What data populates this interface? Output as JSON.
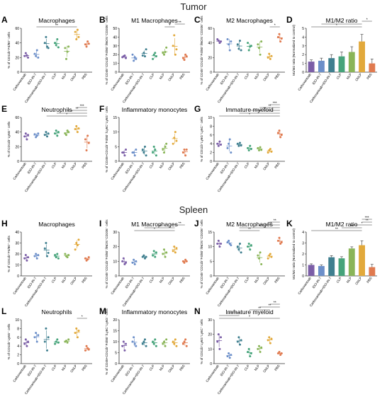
{
  "sections": {
    "tumor": "Tumor",
    "spleen": "Spleen"
  },
  "categories": [
    "Carboxantoab",
    "IDO-IN-7",
    "Carboxantoab+IDO-IN-7",
    "CLP",
    "NLP",
    "CNLP",
    "PBS"
  ],
  "group_colors": [
    "#7b5ea7",
    "#6c8fc9",
    "#3f7f8f",
    "#45a37a",
    "#8ab558",
    "#e2a93b",
    "#e07a4f"
  ],
  "chart_data": [
    {
      "panel": "A",
      "title": "Macrophages",
      "type": "scatter",
      "ylabel": "% of CD11b⁺F4/80⁺ cells",
      "ylim": [
        0,
        60
      ],
      "yticks": [
        0,
        20,
        40,
        60
      ],
      "series": [
        [
          22,
          26,
          23,
          20
        ],
        [
          25,
          22,
          30,
          20
        ],
        [
          40,
          48,
          35,
          33
        ],
        [
          40,
          37,
          45,
          34
        ],
        [
          33,
          18,
          28,
          35
        ],
        [
          55,
          45,
          58,
          48
        ],
        [
          38,
          35,
          42,
          39
        ]
      ],
      "annotations": [
        {
          "from": 1,
          "to": 5,
          "text": "**"
        }
      ]
    },
    {
      "panel": "B",
      "title": "M1 Macrophages",
      "type": "scatter",
      "ylabel": "% of CD45⁺CD11b⁺F4/80⁺/iNOS⁺CD206⁻ cells",
      "ylim": [
        0,
        50
      ],
      "yticks": [
        0,
        10,
        20,
        30,
        40,
        50
      ],
      "series": [
        [
          17,
          18,
          19,
          16
        ],
        [
          20,
          13,
          17,
          15
        ],
        [
          19,
          22,
          18,
          26
        ],
        [
          15,
          20,
          22,
          18
        ],
        [
          22,
          20,
          23,
          28
        ],
        [
          30,
          42,
          20,
          26
        ],
        [
          16,
          14,
          20,
          18
        ]
      ],
      "annotations": [
        {
          "from": 4,
          "to": 5,
          "text": "*"
        },
        {
          "from": 5,
          "to": 6,
          "text": "**"
        }
      ]
    },
    {
      "panel": "C",
      "title": "M2 Macrophages",
      "type": "scatter",
      "ylabel": "% of CD45⁺CD11b⁺F4/80⁺/iNOS⁻CD206⁺ cells",
      "ylim": [
        0,
        60
      ],
      "yticks": [
        0,
        20,
        40,
        60
      ],
      "series": [
        [
          45,
          43,
          40,
          42
        ],
        [
          45,
          38,
          30,
          42
        ],
        [
          38,
          32,
          43,
          30
        ],
        [
          40,
          30,
          35,
          36
        ],
        [
          38,
          33,
          24,
          42
        ],
        [
          20,
          25,
          18,
          22
        ],
        [
          48,
          52,
          42,
          46
        ]
      ],
      "annotations": [
        {
          "from": 5,
          "to": 6,
          "text": "*"
        }
      ]
    },
    {
      "panel": "D",
      "title": "M1/M2 ratio",
      "type": "bar",
      "ylabel": "M1/M2 ratio (Normalized to control)",
      "ylim": [
        0,
        5
      ],
      "yticks": [
        0,
        1,
        2,
        3,
        4,
        5
      ],
      "values": [
        1.2,
        1.3,
        1.6,
        1.8,
        2.3,
        3.5,
        1.0
      ],
      "errors": [
        0.2,
        0.3,
        0.4,
        0.5,
        0.6,
        0.8,
        0.5
      ],
      "annotations": [
        {
          "from": 0,
          "to": 5,
          "text": "*"
        },
        {
          "from": 1,
          "to": 5,
          "text": "*"
        },
        {
          "from": 5,
          "to": 6,
          "text": "*"
        }
      ]
    },
    {
      "panel": "E",
      "title": "Neutrophils",
      "type": "scatter",
      "ylabel": "% of CD11b⁺Ly6G⁺ cells",
      "ylim": [
        0,
        60
      ],
      "yticks": [
        0,
        20,
        40,
        60
      ],
      "series": [
        [
          34,
          38,
          30,
          36
        ],
        [
          37,
          33,
          35,
          38
        ],
        [
          36,
          40,
          34,
          38
        ],
        [
          38,
          42,
          35,
          40
        ],
        [
          38,
          36,
          42,
          40
        ],
        [
          44,
          48,
          40,
          45
        ],
        [
          30,
          15,
          35,
          25
        ]
      ],
      "annotations": [
        {
          "from": 2,
          "to": 6,
          "text": "*"
        },
        {
          "from": 3,
          "to": 6,
          "text": "*"
        },
        {
          "from": 4,
          "to": 6,
          "text": "**"
        },
        {
          "from": 5,
          "to": 6,
          "text": "***"
        }
      ]
    },
    {
      "panel": "F",
      "title": "Inflammatory monocytes",
      "type": "scatter",
      "ylabel": "% of CD45+CD11b⁺F4/80⁻/Ly6C⁺Ly6G⁻ cells",
      "ylim": [
        0,
        15
      ],
      "yticks": [
        0,
        5,
        10,
        15
      ],
      "series": [
        [
          3,
          3,
          2,
          4
        ],
        [
          3,
          3,
          2,
          4
        ],
        [
          4,
          3,
          5,
          2
        ],
        [
          3,
          5,
          4,
          2
        ],
        [
          4,
          3,
          5,
          6
        ],
        [
          6,
          8,
          10,
          7
        ],
        [
          3,
          4,
          2,
          4
        ]
      ],
      "annotations": []
    },
    {
      "panel": "G",
      "title": "Immature myeloid",
      "type": "scatter",
      "ylabel": "% of CD11b⁺Ly6G⁺Ly6C⁺ cells",
      "ylim": [
        0,
        10
      ],
      "yticks": [
        0,
        2,
        4,
        6,
        8,
        10
      ],
      "series": [
        [
          4,
          3.5,
          4.5,
          3.8
        ],
        [
          3,
          4,
          5,
          2
        ],
        [
          4,
          3.5,
          4.2,
          3.6
        ],
        [
          3,
          2.5,
          3.5,
          2.8
        ],
        [
          3,
          2.5,
          3.2,
          2.6
        ],
        [
          2,
          2.5,
          2.8,
          2.2
        ],
        [
          6.5,
          7,
          5.5,
          6
        ]
      ],
      "annotations": [
        {
          "from": 0,
          "to": 6,
          "text": "*"
        },
        {
          "from": 2,
          "to": 6,
          "text": "**"
        },
        {
          "from": 3,
          "to": 6,
          "text": "**"
        },
        {
          "from": 4,
          "to": 6,
          "text": "**"
        },
        {
          "from": 5,
          "to": 6,
          "text": "***"
        }
      ]
    },
    {
      "panel": "H",
      "title": "Macrophages",
      "type": "scatter",
      "ylabel": "% of CD11b⁺F4/80⁺ cells",
      "ylim": [
        0,
        40
      ],
      "yticks": [
        0,
        10,
        20,
        30,
        40
      ],
      "series": [
        [
          16,
          19,
          14,
          17
        ],
        [
          18,
          20,
          16,
          19
        ],
        [
          25,
          30,
          18,
          21
        ],
        [
          19,
          17,
          20,
          16
        ],
        [
          20,
          18,
          17,
          19
        ],
        [
          24,
          30,
          28,
          33
        ],
        [
          16,
          14,
          15,
          17
        ]
      ],
      "annotations": []
    },
    {
      "panel": "I",
      "title": "M1 Macrophages",
      "type": "scatter",
      "ylabel": "% of CD45⁺CD11b⁺F4/80⁺/iNOS⁺CD206⁻ cells",
      "ylim": [
        0,
        30
      ],
      "yticks": [
        0,
        10,
        20,
        30
      ],
      "series": [
        [
          10,
          12,
          8,
          9
        ],
        [
          9,
          11,
          8,
          10
        ],
        [
          13,
          14,
          12,
          13
        ],
        [
          14,
          17,
          13,
          16
        ],
        [
          15,
          18,
          13,
          16
        ],
        [
          17,
          20,
          16,
          19
        ],
        [
          10,
          9,
          11,
          10
        ]
      ],
      "annotations": [
        {
          "from": 1,
          "to": 5,
          "text": "*"
        },
        {
          "from": 2,
          "to": 5,
          "text": "**"
        },
        {
          "from": 5,
          "to": 6,
          "text": "**"
        }
      ]
    },
    {
      "panel": "J",
      "title": "M2 Macrophages",
      "type": "scatter",
      "ylabel": "% of CD45⁺CD11b⁺F4/80⁺/iNOS⁻CD206⁺ cells",
      "ylim": [
        0,
        15
      ],
      "yticks": [
        0,
        5,
        10,
        15
      ],
      "series": [
        [
          11,
          12,
          10,
          11
        ],
        [
          11.5,
          12,
          11,
          10.5
        ],
        [
          10,
          9,
          11,
          8
        ],
        [
          10,
          11,
          9,
          10.5
        ],
        [
          7,
          6,
          8,
          4
        ],
        [
          6,
          7,
          7.5,
          6.5
        ],
        [
          12,
          13,
          11,
          11.5
        ]
      ],
      "annotations": [
        {
          "from": 2,
          "to": 4,
          "text": "**"
        },
        {
          "from": 2,
          "to": 6,
          "text": "*"
        },
        {
          "from": 4,
          "to": 6,
          "text": "***"
        },
        {
          "from": 5,
          "to": 6,
          "text": "**"
        }
      ]
    },
    {
      "panel": "K",
      "title": "M1/M2 ratio",
      "type": "bar",
      "ylabel": "M1/M2 ratio (Normalized to control)",
      "ylim": [
        0,
        4
      ],
      "yticks": [
        0,
        1,
        2,
        3,
        4
      ],
      "values": [
        1.0,
        0.9,
        1.7,
        1.6,
        2.5,
        2.8,
        0.8
      ],
      "errors": [
        0.1,
        0.1,
        0.15,
        0.15,
        0.15,
        0.4,
        0.25
      ],
      "annotations": [
        {
          "from": 0,
          "to": 5,
          "text": "**"
        },
        {
          "from": 3,
          "to": 5,
          "text": "**"
        },
        {
          "from": 4,
          "to": 6,
          "text": "*"
        },
        {
          "from": 5,
          "to": 6,
          "text": "**"
        },
        {
          "from": 5,
          "to": 6,
          "text": "***"
        }
      ]
    },
    {
      "panel": "L",
      "title": "Neutrophils",
      "type": "scatter",
      "ylabel": "% of CD11b⁺Ly6G⁺ cells",
      "ylim": [
        0,
        10
      ],
      "yticks": [
        0,
        2,
        4,
        6,
        8,
        10
      ],
      "series": [
        [
          4.5,
          5.5,
          4,
          5
        ],
        [
          6,
          7,
          5,
          6.5
        ],
        [
          5,
          8,
          3,
          6
        ],
        [
          4.5,
          5,
          5.5,
          4.8
        ],
        [
          5,
          5.2,
          4.8,
          5.5
        ],
        [
          7,
          8,
          6,
          7.5
        ],
        [
          3,
          4,
          3.5,
          3.2
        ]
      ],
      "annotations": [
        {
          "from": 5,
          "to": 6,
          "text": "*"
        }
      ]
    },
    {
      "panel": "M",
      "title": "Inflammatory monocytes",
      "type": "scatter",
      "ylabel": "% of CD45+CD11b⁺F4/80⁻/Ly6C⁺Ly6G⁻ cells",
      "ylim": [
        0,
        20
      ],
      "yticks": [
        0,
        5,
        10,
        15,
        20
      ],
      "series": [
        [
          8,
          10,
          6,
          9
        ],
        [
          10,
          12,
          9,
          8
        ],
        [
          9,
          10,
          11,
          8
        ],
        [
          10,
          9,
          11,
          8
        ],
        [
          9,
          10,
          8,
          11
        ],
        [
          10,
          9,
          11,
          8
        ],
        [
          9,
          10,
          11,
          8
        ]
      ],
      "annotations": []
    },
    {
      "panel": "N",
      "title": "Immature myeloid",
      "type": "scatter",
      "ylabel": "% of CD11b⁺Ly6G⁺Ly6C⁺ cells",
      "ylim": [
        0,
        30
      ],
      "yticks": [
        0,
        10,
        20,
        30
      ],
      "series": [
        [
          15,
          20,
          10,
          18
        ],
        [
          5,
          7,
          4,
          6
        ],
        [
          15,
          18,
          13,
          16
        ],
        [
          8,
          10,
          5,
          7
        ],
        [
          10,
          12,
          8,
          11
        ],
        [
          16,
          18,
          14,
          17
        ],
        [
          7,
          8,
          6,
          7
        ]
      ],
      "annotations": [
        {
          "from": 0,
          "to": 6,
          "text": "*"
        },
        {
          "from": 0,
          "to": 2,
          "text": "*"
        },
        {
          "from": 1,
          "to": 2,
          "text": "*"
        },
        {
          "from": 3,
          "to": 5,
          "text": "**"
        },
        {
          "from": 4,
          "to": 6,
          "text": "**"
        },
        {
          "from": 5,
          "to": 6,
          "text": "**"
        }
      ]
    }
  ]
}
